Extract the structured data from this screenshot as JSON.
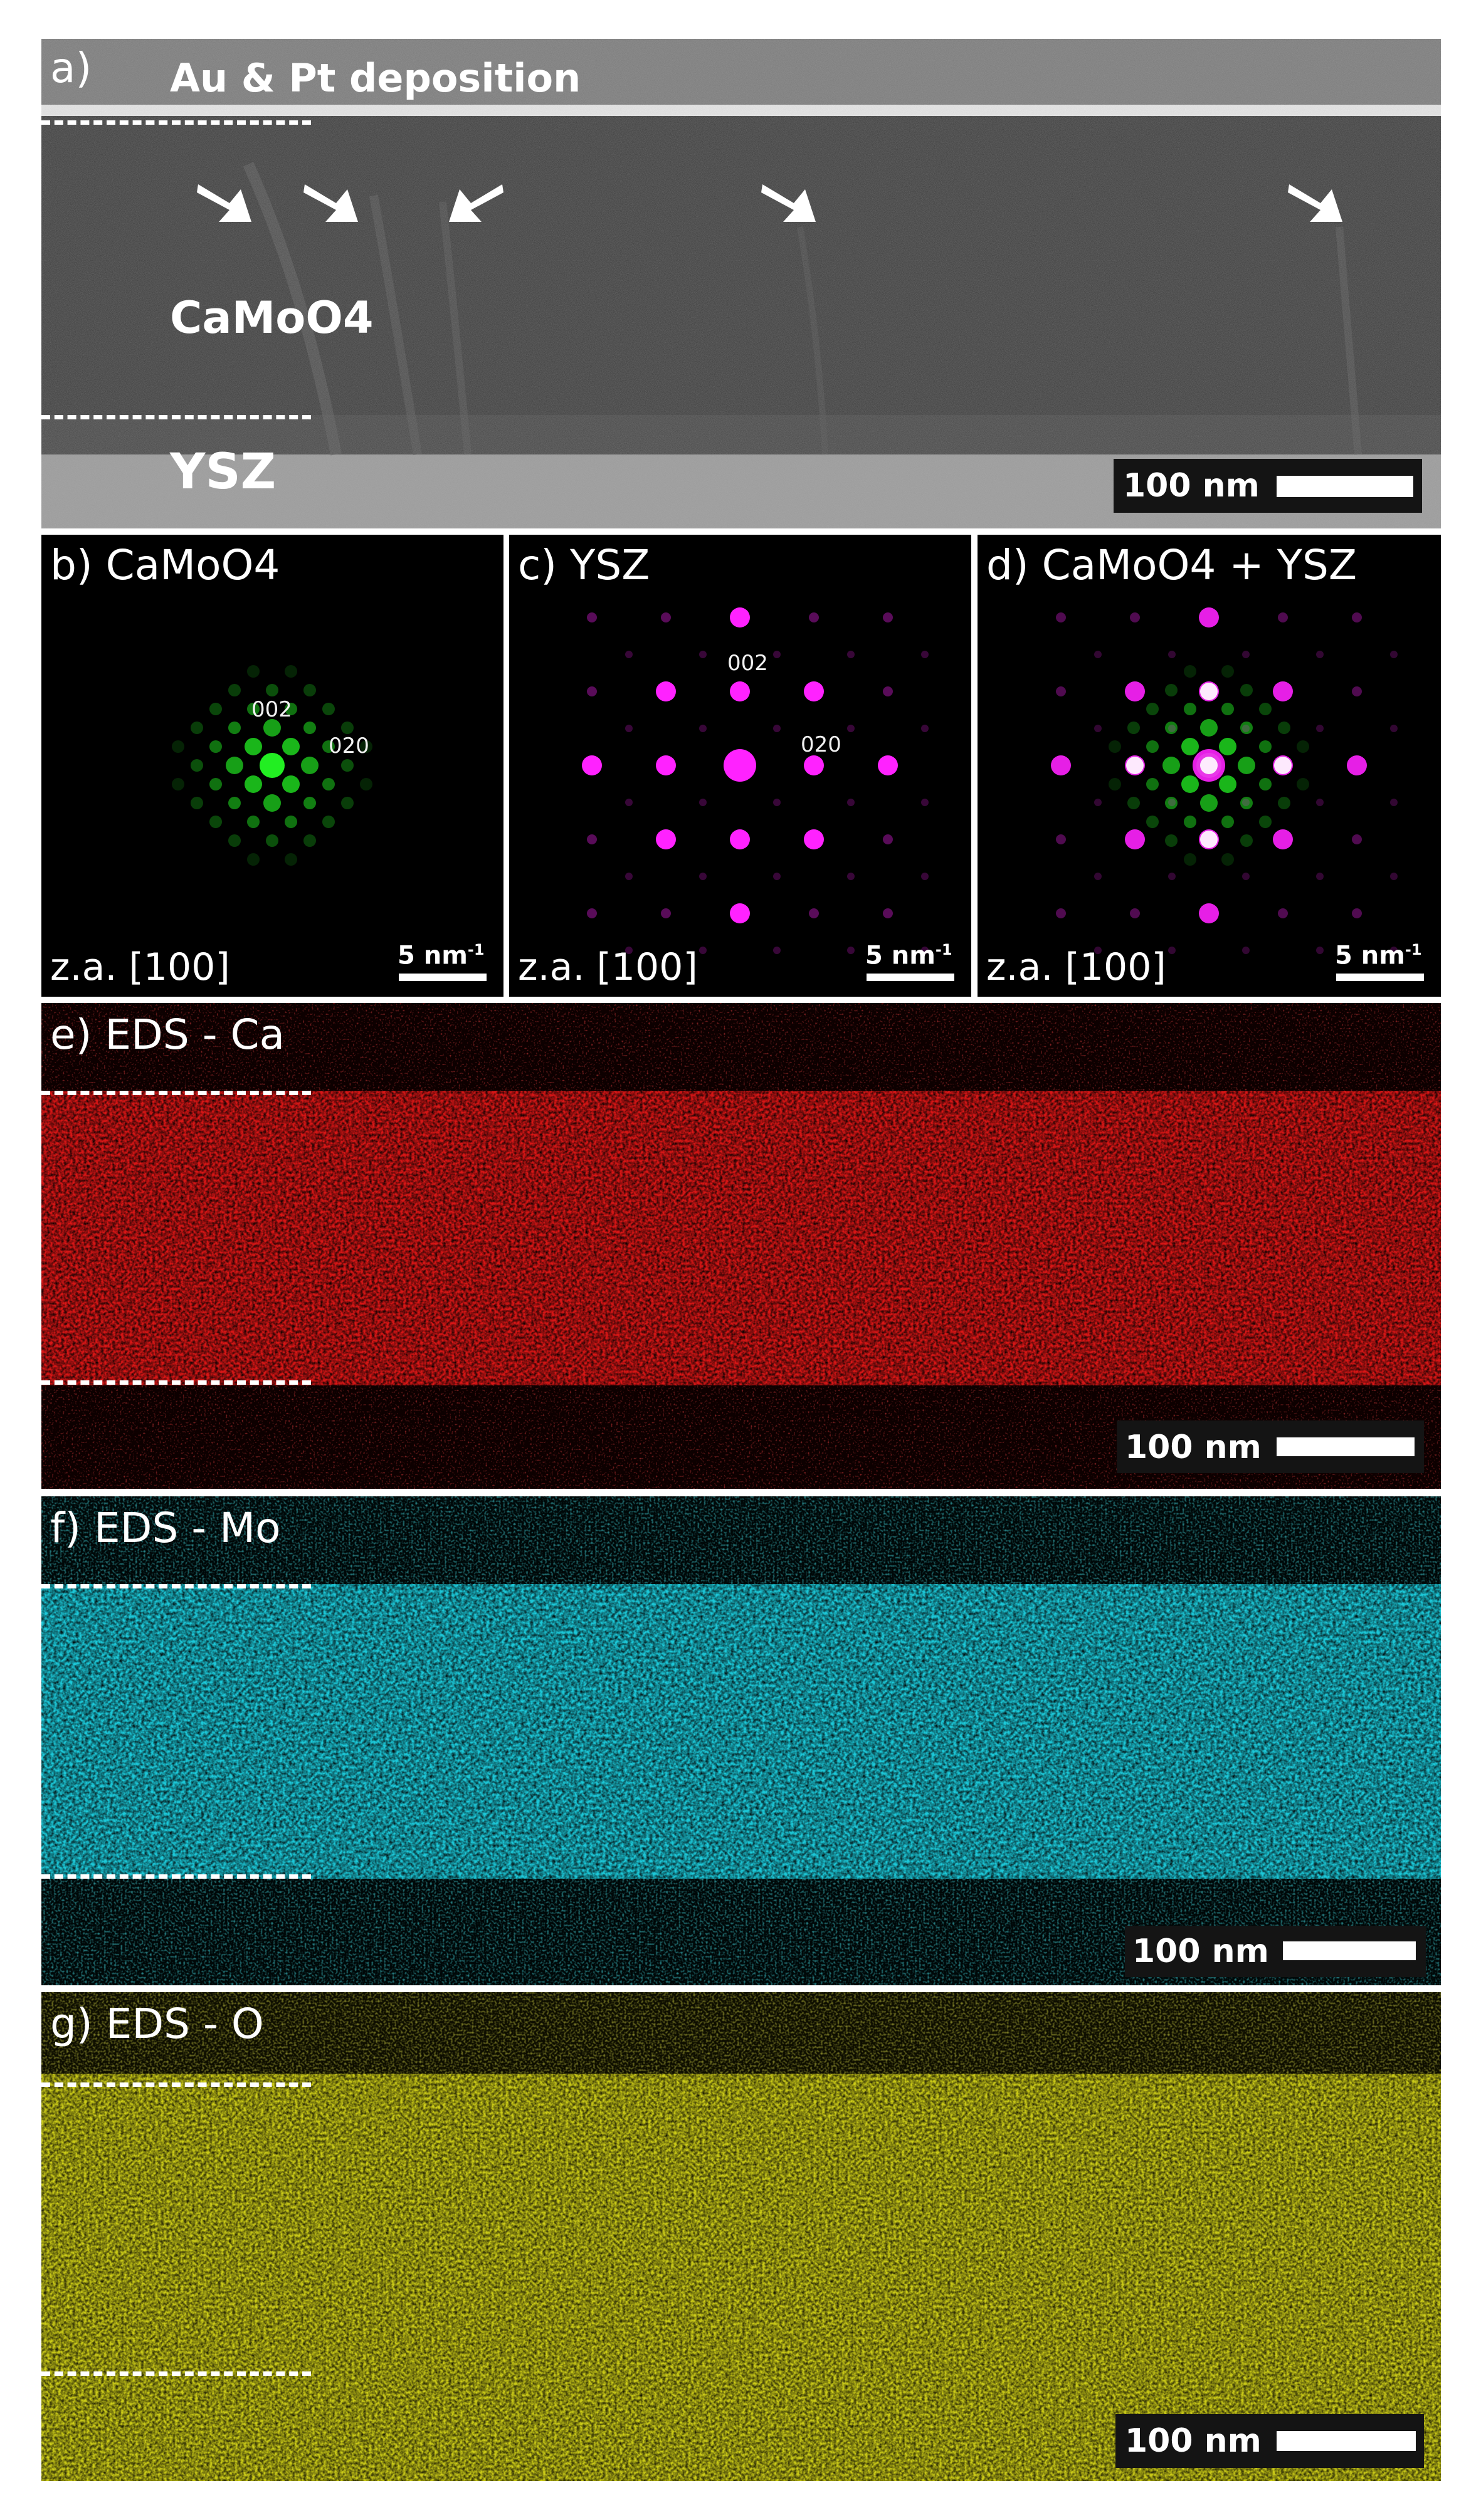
{
  "panels": {
    "a": {
      "label": "a)",
      "deposition": "Au & Pt deposition",
      "film": "CaMoO4",
      "substrate": "YSZ",
      "scale": "100 nm",
      "arrows": 5
    },
    "b": {
      "label": "b) CaMoO4",
      "spot_a": "002",
      "spot_b": "020",
      "zone_axis": "z.a. [100]",
      "scale": "5 nm",
      "scale_unit_exp": "-1",
      "color": "#22ee22"
    },
    "c": {
      "label": "c) YSZ",
      "spot_a": "002",
      "spot_b": "020",
      "zone_axis": "z.a. [100]",
      "scale": "5 nm",
      "scale_unit_exp": "-1",
      "color": "#ff22ff"
    },
    "d": {
      "label": "d) CaMoO4 + YSZ",
      "zone_axis": "z.a. [100]",
      "scale": "5 nm",
      "scale_unit_exp": "-1"
    },
    "e": {
      "label": "e) EDS - Ca",
      "scale": "100 nm",
      "color": "#ff1a1a"
    },
    "f": {
      "label": "f) EDS - Mo",
      "scale": "100 nm",
      "color": "#1ec8d6"
    },
    "g": {
      "label": "g) EDS - O",
      "scale": "100 nm",
      "color": "#d6d61a"
    }
  }
}
